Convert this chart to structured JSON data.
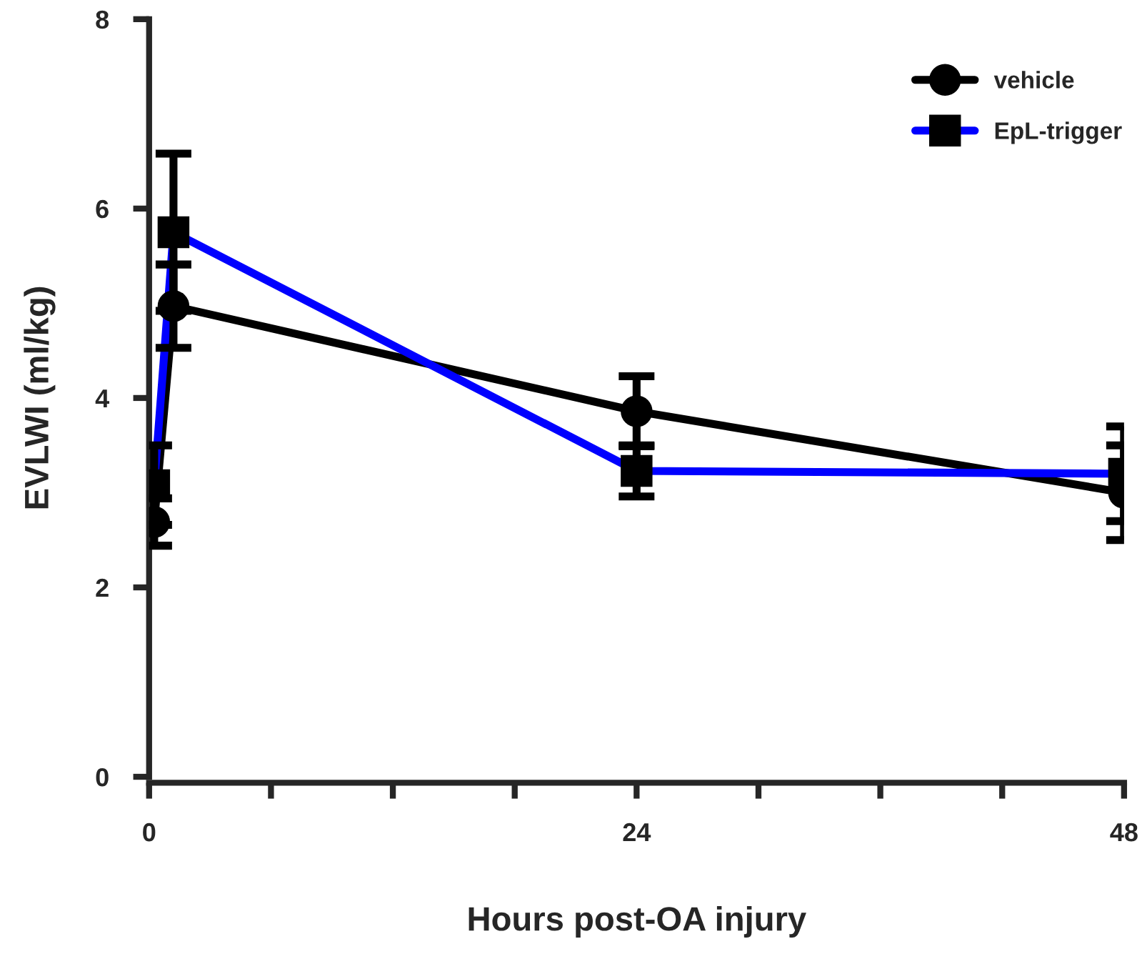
{
  "chart_data": {
    "type": "line",
    "xlabel": "Hours post-OA injury",
    "ylabel": "EVLWI (ml/kg)",
    "xlim": [
      0,
      48
    ],
    "ylim": [
      0,
      8
    ],
    "xticks": [
      0,
      {
        "value": 6,
        "label": null
      },
      {
        "value": 12,
        "label": null
      },
      {
        "value": 18,
        "label": null
      },
      24,
      {
        "value": 30,
        "label": null
      },
      {
        "value": 36,
        "label": null
      },
      {
        "value": 42,
        "label": null
      },
      48
    ],
    "yticks": [
      0,
      2,
      4,
      6,
      8
    ],
    "grid": false,
    "legend": "top right",
    "line_style": "solid",
    "series": [
      {
        "name": "vehicle",
        "color": "#000000",
        "marker": "circle",
        "x": [
          0.25,
          1.2,
          24,
          48
        ],
        "values": [
          2.69,
          4.97,
          3.86,
          3.0
        ],
        "errors": [
          0.25,
          0.44,
          0.37,
          0.5
        ]
      },
      {
        "name": "EpL-trigger",
        "color": "#0000ff",
        "marker": "square",
        "x": [
          0.25,
          1.2,
          24,
          48
        ],
        "values": [
          3.08,
          5.75,
          3.23,
          3.2
        ],
        "errors": [
          0.42,
          0.83,
          0.27,
          0.5
        ]
      }
    ]
  }
}
